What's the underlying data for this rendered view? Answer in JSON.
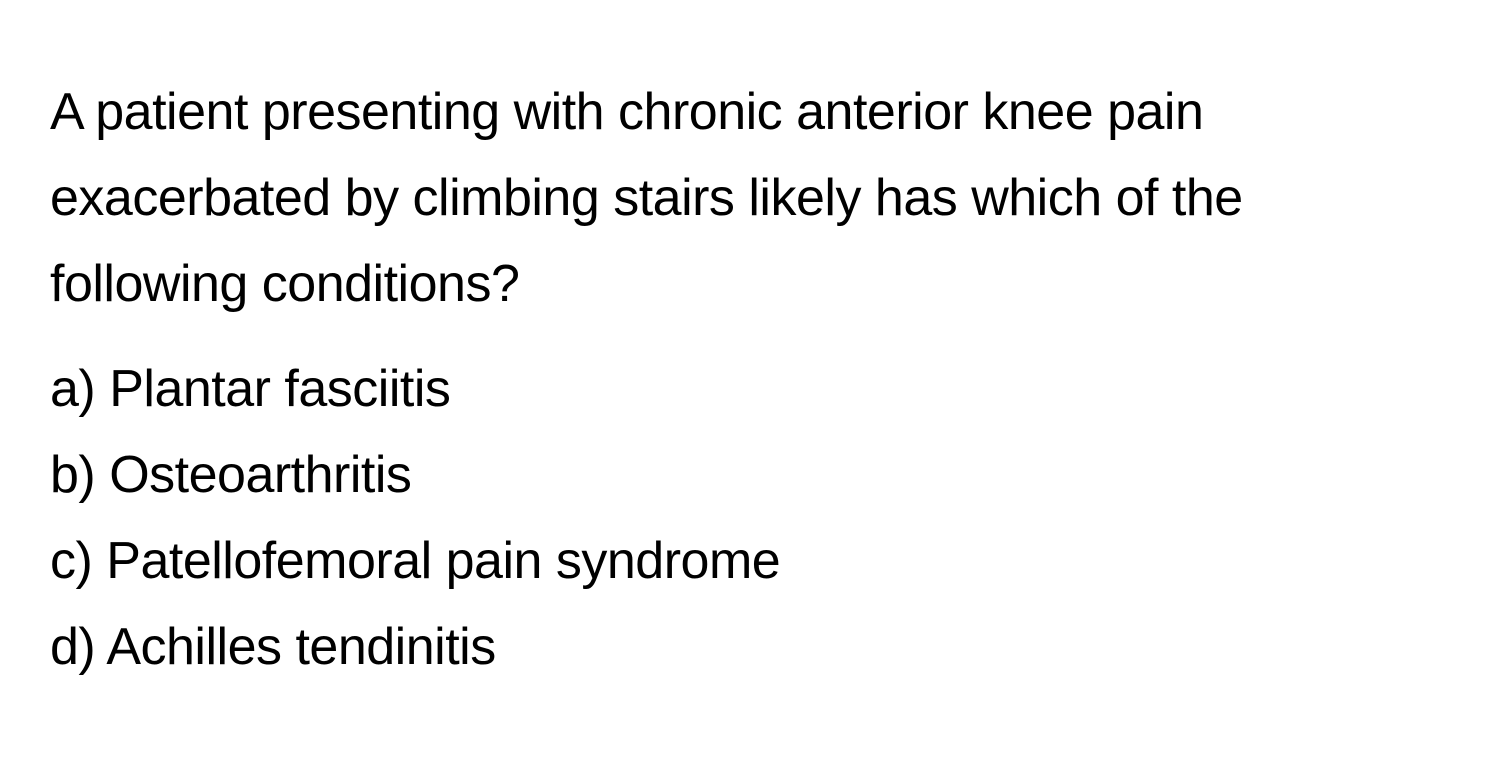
{
  "document": {
    "background_color": "#ffffff",
    "text_color": "#000000",
    "font_size_pt": 39,
    "line_height": 1.65,
    "font_weight": 400,
    "font_family": "-apple-system, BlinkMacSystemFont, Segoe UI, Helvetica, Arial, sans-serif"
  },
  "question": {
    "text": "A patient presenting with chronic anterior knee pain exacerbated by climbing stairs likely has which of the following conditions?"
  },
  "options": [
    {
      "letter": "a)",
      "text": "Plantar fasciitis"
    },
    {
      "letter": "b)",
      "text": "Osteoarthritis"
    },
    {
      "letter": "c)",
      "text": "Patellofemoral pain syndrome"
    },
    {
      "letter": "d)",
      "text": "Achilles tendinitis"
    }
  ]
}
